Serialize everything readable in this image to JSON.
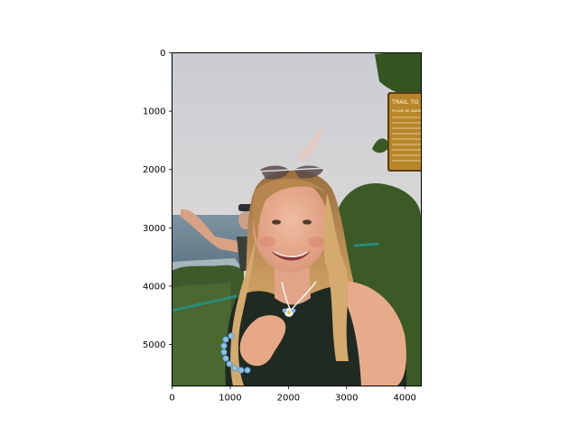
{
  "chart_data": {
    "type": "image",
    "title": "",
    "xlabel": "",
    "ylabel": "",
    "xlim": [
      0,
      4284
    ],
    "ylim": [
      5712,
      0
    ],
    "y_inverted": true,
    "grid": false,
    "x_ticks": [
      0,
      1000,
      2000,
      3000,
      4000
    ],
    "x_tick_labels": [
      "0",
      "1000",
      "2000",
      "3000",
      "4000"
    ],
    "y_ticks": [
      0,
      1000,
      2000,
      3000,
      4000,
      5000
    ],
    "y_tick_labels": [
      "0",
      "1000",
      "2000",
      "3000",
      "4000",
      "5000"
    ],
    "image_content": {
      "subject": "photo of a smiling young woman with long wavy hair and sunglasses on her head, wearing a black tank top, flower pendant necklace and beaded bracelet, standing at an ocean overlook with green foliage",
      "sign_text": [
        "TRAIL TO K",
        "PLEASE BE AWARE OF"
      ]
    },
    "colors": {
      "sky_top": "#c9ccd2",
      "sky_bottom": "#e2d6cb",
      "ocean": "#6f8796",
      "foliage": "#3e5a2a",
      "sign": "#b8862a",
      "skin": "#e7ab8c",
      "hair": "#c99a5e",
      "top": "#1f2a22"
    }
  }
}
